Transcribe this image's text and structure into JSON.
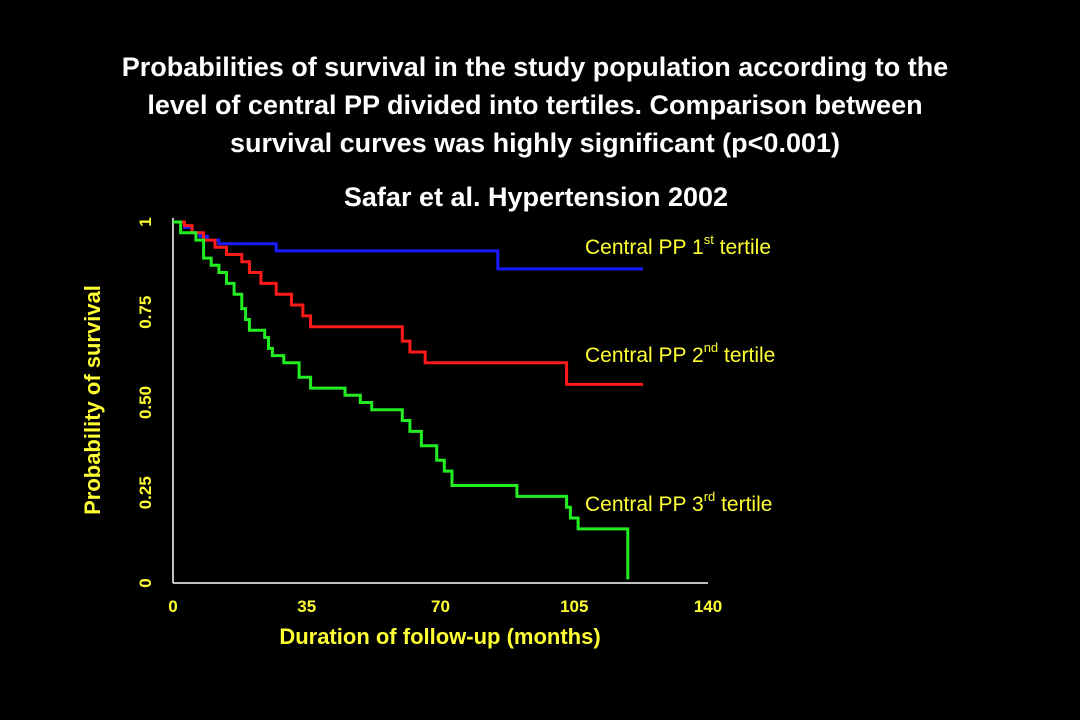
{
  "chart_data": {
    "type": "line",
    "title_lines": [
      "Probabilities of survival in the study population according to the",
      "level of central PP divided into tertiles. Comparison between",
      "survival curves was highly significant (p<0.001)"
    ],
    "subtitle": "Safar et al. Hypertension 2002",
    "xlabel": "Duration of follow-up (months)",
    "ylabel": "Probability of survival",
    "xlim": [
      0,
      140
    ],
    "ylim": [
      0,
      1
    ],
    "x_ticks": [
      "0",
      "35",
      "70",
      "105",
      "140"
    ],
    "y_ticks": [
      "0",
      "0.25",
      "0.50",
      "0.75",
      "1"
    ],
    "grid": false,
    "series": [
      {
        "name": "Central PP 1st tertile",
        "label_main": "Central PP 1",
        "label_sup": "st",
        "label_tail": " tertile",
        "color": "#1a1aff",
        "points": [
          [
            0,
            1.0
          ],
          [
            3,
            1.0
          ],
          [
            3,
            0.985
          ],
          [
            5,
            0.985
          ],
          [
            5,
            0.97
          ],
          [
            7,
            0.97
          ],
          [
            7,
            0.96
          ],
          [
            9,
            0.96
          ],
          [
            9,
            0.95
          ],
          [
            12,
            0.95
          ],
          [
            12,
            0.94
          ],
          [
            27,
            0.94
          ],
          [
            27,
            0.92
          ],
          [
            85,
            0.92
          ],
          [
            85,
            0.87
          ],
          [
            123,
            0.87
          ]
        ]
      },
      {
        "name": "Central PP 2nd tertile",
        "label_main": "Central PP 2",
        "label_sup": "nd",
        "label_tail": " tertile",
        "color": "#ff1a1a",
        "points": [
          [
            0,
            1.0
          ],
          [
            3,
            1.0
          ],
          [
            3,
            0.99
          ],
          [
            5,
            0.99
          ],
          [
            5,
            0.97
          ],
          [
            8,
            0.97
          ],
          [
            8,
            0.95
          ],
          [
            11,
            0.95
          ],
          [
            11,
            0.93
          ],
          [
            14,
            0.93
          ],
          [
            14,
            0.91
          ],
          [
            18,
            0.91
          ],
          [
            18,
            0.89
          ],
          [
            20,
            0.89
          ],
          [
            20,
            0.86
          ],
          [
            23,
            0.86
          ],
          [
            23,
            0.83
          ],
          [
            27,
            0.83
          ],
          [
            27,
            0.8
          ],
          [
            31,
            0.8
          ],
          [
            31,
            0.77
          ],
          [
            34,
            0.77
          ],
          [
            34,
            0.74
          ],
          [
            36,
            0.74
          ],
          [
            36,
            0.71
          ],
          [
            60,
            0.71
          ],
          [
            60,
            0.67
          ],
          [
            62,
            0.67
          ],
          [
            62,
            0.64
          ],
          [
            66,
            0.64
          ],
          [
            66,
            0.61
          ],
          [
            103,
            0.61
          ],
          [
            103,
            0.55
          ],
          [
            123,
            0.55
          ]
        ]
      },
      {
        "name": "Central PP 3rd tertile",
        "label_main": "Central PP 3",
        "label_sup": "rd",
        "label_tail": " tertile",
        "color": "#22ee22",
        "points": [
          [
            0,
            1.0
          ],
          [
            2,
            1.0
          ],
          [
            2,
            0.97
          ],
          [
            6,
            0.97
          ],
          [
            6,
            0.95
          ],
          [
            8,
            0.95
          ],
          [
            8,
            0.9
          ],
          [
            10,
            0.9
          ],
          [
            10,
            0.88
          ],
          [
            12,
            0.88
          ],
          [
            12,
            0.86
          ],
          [
            14,
            0.86
          ],
          [
            14,
            0.83
          ],
          [
            16,
            0.83
          ],
          [
            16,
            0.8
          ],
          [
            18,
            0.8
          ],
          [
            18,
            0.76
          ],
          [
            19,
            0.76
          ],
          [
            19,
            0.73
          ],
          [
            20,
            0.73
          ],
          [
            20,
            0.7
          ],
          [
            24,
            0.7
          ],
          [
            24,
            0.68
          ],
          [
            25,
            0.68
          ],
          [
            25,
            0.65
          ],
          [
            26,
            0.65
          ],
          [
            26,
            0.63
          ],
          [
            29,
            0.63
          ],
          [
            29,
            0.61
          ],
          [
            33,
            0.61
          ],
          [
            33,
            0.57
          ],
          [
            36,
            0.57
          ],
          [
            36,
            0.54
          ],
          [
            45,
            0.54
          ],
          [
            45,
            0.52
          ],
          [
            49,
            0.52
          ],
          [
            49,
            0.5
          ],
          [
            52,
            0.5
          ],
          [
            52,
            0.48
          ],
          [
            60,
            0.48
          ],
          [
            60,
            0.45
          ],
          [
            62,
            0.45
          ],
          [
            62,
            0.42
          ],
          [
            65,
            0.42
          ],
          [
            65,
            0.38
          ],
          [
            69,
            0.38
          ],
          [
            69,
            0.34
          ],
          [
            71,
            0.34
          ],
          [
            71,
            0.31
          ],
          [
            73,
            0.31
          ],
          [
            73,
            0.27
          ],
          [
            90,
            0.27
          ],
          [
            90,
            0.24
          ],
          [
            103,
            0.24
          ],
          [
            103,
            0.21
          ],
          [
            104,
            0.21
          ],
          [
            104,
            0.18
          ],
          [
            106,
            0.18
          ],
          [
            106,
            0.15
          ],
          [
            119,
            0.15
          ],
          [
            119,
            0.01
          ]
        ]
      }
    ]
  }
}
